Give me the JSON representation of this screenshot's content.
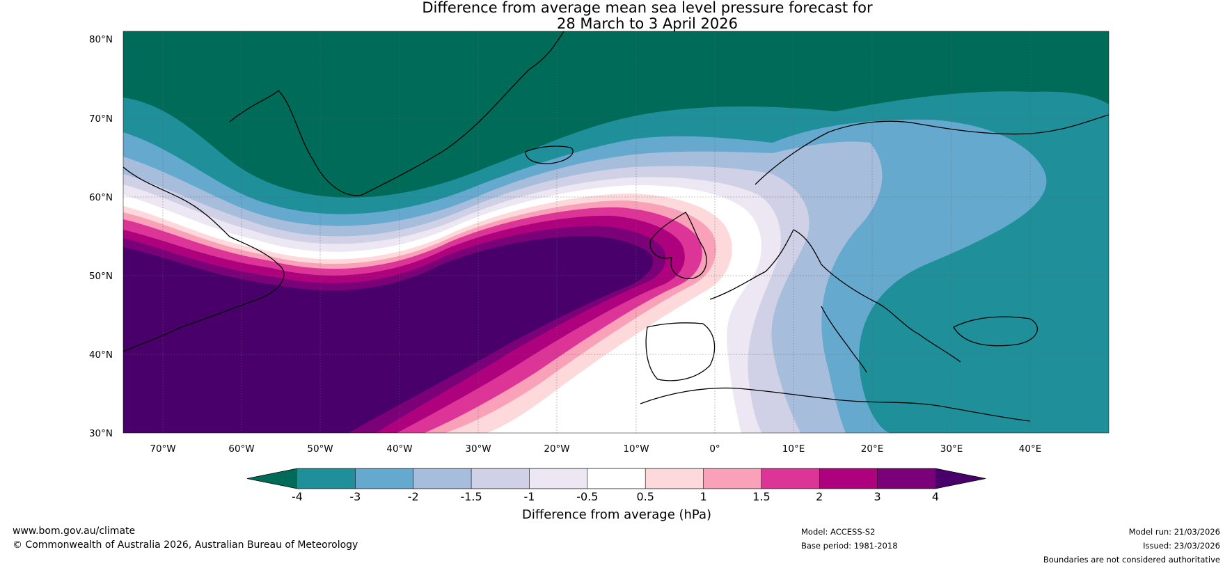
{
  "title": {
    "line1": "Difference from average mean sea level pressure forecast for",
    "line2": "28 March to 3 April 2026"
  },
  "map": {
    "lat_labels": [
      "80°N",
      "70°N",
      "60°N",
      "50°N",
      "40°N",
      "30°N"
    ],
    "lon_labels": [
      "70°W",
      "60°W",
      "50°W",
      "40°W",
      "30°W",
      "20°W",
      "10°W",
      "0°",
      "10°E",
      "20°E",
      "30°E",
      "40°E"
    ],
    "extent": {
      "lon_min": -75,
      "lon_max": 50,
      "lat_min": 30,
      "lat_max": 81
    }
  },
  "colorbar": {
    "label": "Difference from average (hPa)",
    "ticks": [
      "-4",
      "-3",
      "-2",
      "-1.5",
      "-1",
      "-0.5",
      "0.5",
      "1",
      "1.5",
      "2",
      "3",
      "4"
    ],
    "colors": [
      "#006b58",
      "#1f8f99",
      "#66a9cf",
      "#a6bddb",
      "#d0d1e6",
      "#ece7f2",
      "#ffffff",
      "#fdd9db",
      "#f8a1b9",
      "#dd3497",
      "#ae017e",
      "#7a0177",
      "#49006a"
    ]
  },
  "footer": {
    "website": "www.bom.gov.au/climate",
    "copyright": "© Commonwealth of Australia 2026, Australian Bureau of Meteorology",
    "model": "Model: ACCESS-S2",
    "base_period": "Base period: 1981-2018",
    "model_run": "Model run: 21/03/2026",
    "issued": "Issued: 23/03/2026",
    "boundaries": "Boundaries are not considered authoritative"
  }
}
